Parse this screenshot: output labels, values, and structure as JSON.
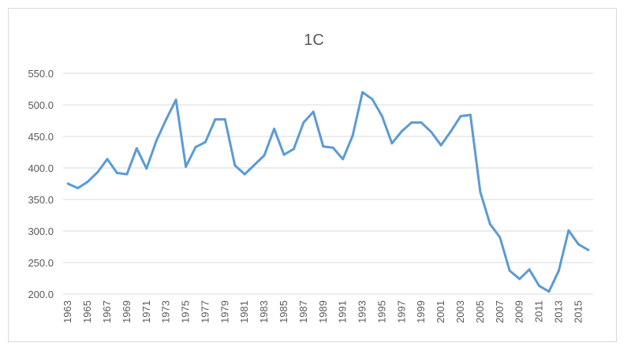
{
  "chart_data": {
    "type": "line",
    "title": "1C",
    "xlabel": "",
    "ylabel": "",
    "ylim": [
      200,
      550
    ],
    "yticks": [
      "200.0",
      "250.0",
      "300.0",
      "350.0",
      "400.0",
      "450.0",
      "500.0",
      "550.0"
    ],
    "grid": true,
    "legend": "none",
    "line_color": "#5b9bd5",
    "x": [
      1963,
      1964,
      1965,
      1966,
      1967,
      1968,
      1969,
      1970,
      1971,
      1972,
      1973,
      1974,
      1975,
      1976,
      1977,
      1978,
      1979,
      1980,
      1981,
      1982,
      1983,
      1984,
      1985,
      1986,
      1987,
      1988,
      1989,
      1990,
      1991,
      1992,
      1993,
      1994,
      1995,
      1996,
      1997,
      1998,
      1999,
      2000,
      2001,
      2002,
      2003,
      2004,
      2005,
      2006,
      2007,
      2008,
      2009,
      2010,
      2011,
      2012,
      2013,
      2014,
      2015,
      2016
    ],
    "xtick_labels": [
      "1963",
      "1965",
      "1967",
      "1969",
      "1971",
      "1973",
      "1975",
      "1977",
      "1979",
      "1981",
      "1983",
      "1985",
      "1987",
      "1989",
      "1991",
      "1993",
      "1995",
      "1997",
      "1999",
      "2001",
      "2003",
      "2005",
      "2007",
      "2009",
      "2011",
      "2013",
      "2015"
    ],
    "series": [
      {
        "values": [
          375,
          368,
          378,
          393,
          414,
          392,
          390,
          431,
          399,
          443,
          477,
          508,
          402,
          433,
          441,
          477,
          477,
          404,
          390,
          405,
          420,
          462,
          421,
          430,
          472,
          489,
          434,
          432,
          414,
          451,
          520,
          509,
          482,
          439,
          458,
          472,
          472,
          457,
          436,
          458,
          482,
          484,
          362,
          311,
          290,
          237,
          224,
          239,
          213,
          204,
          237,
          301,
          279,
          270
        ]
      }
    ]
  }
}
